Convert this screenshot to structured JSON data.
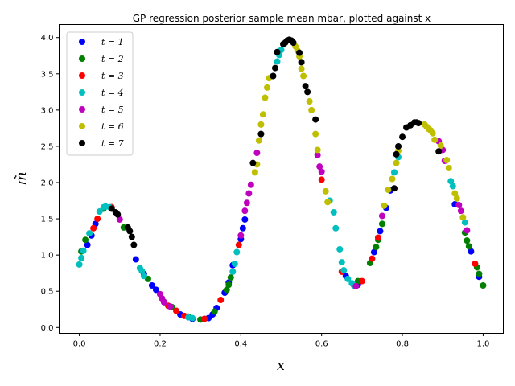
{
  "chart_data": {
    "type": "scatter",
    "title": "GP regression posterior sample mean mbar, plotted against x",
    "xlabel": "x",
    "ylabel": "m̃",
    "xlim": [
      -0.05,
      1.05
    ],
    "ylim": [
      -0.08,
      4.18
    ],
    "xticks": [
      0.0,
      0.2,
      0.4,
      0.6,
      0.8,
      1.0
    ],
    "xtick_labels": [
      "0.0",
      "0.2",
      "0.4",
      "0.6",
      "0.8",
      "1.0"
    ],
    "yticks": [
      0.0,
      0.5,
      1.0,
      1.5,
      2.0,
      2.5,
      3.0,
      3.5,
      4.0
    ],
    "ytick_labels": [
      "0.0",
      "0.5",
      "1.0",
      "1.5",
      "2.0",
      "2.5",
      "3.0",
      "3.5",
      "4.0"
    ],
    "grid": false,
    "legend_position": "top-left",
    "series": [
      {
        "name": "t = 1",
        "color": "#0000ff",
        "points": [
          [
            0.02,
            1.14
          ],
          [
            0.03,
            1.27
          ],
          [
            0.04,
            1.43
          ],
          [
            0.14,
            0.94
          ],
          [
            0.16,
            0.74
          ],
          [
            0.18,
            0.58
          ],
          [
            0.19,
            0.52
          ],
          [
            0.21,
            0.35
          ],
          [
            0.25,
            0.18
          ],
          [
            0.28,
            0.12
          ],
          [
            0.32,
            0.13
          ],
          [
            0.33,
            0.18
          ],
          [
            0.34,
            0.27
          ],
          [
            0.36,
            0.48
          ],
          [
            0.37,
            0.62
          ],
          [
            0.38,
            0.86
          ],
          [
            0.4,
            1.22
          ],
          [
            0.405,
            1.37
          ],
          [
            0.41,
            1.49
          ],
          [
            0.66,
            0.71
          ],
          [
            0.69,
            0.59
          ],
          [
            0.73,
            1.04
          ],
          [
            0.745,
            1.33
          ],
          [
            0.76,
            1.65
          ],
          [
            0.77,
            1.89
          ],
          [
            0.93,
            1.7
          ],
          [
            0.97,
            1.05
          ],
          [
            0.99,
            0.7
          ]
        ]
      },
      {
        "name": "t = 2",
        "color": "#008000",
        "points": [
          [
            0.005,
            1.05
          ],
          [
            0.015,
            1.21
          ],
          [
            0.06,
            1.64
          ],
          [
            0.11,
            1.38
          ],
          [
            0.17,
            0.67
          ],
          [
            0.23,
            0.28
          ],
          [
            0.27,
            0.15
          ],
          [
            0.3,
            0.11
          ],
          [
            0.335,
            0.22
          ],
          [
            0.365,
            0.52
          ],
          [
            0.37,
            0.59
          ],
          [
            0.375,
            0.69
          ],
          [
            0.69,
            0.64
          ],
          [
            0.72,
            0.89
          ],
          [
            0.735,
            1.11
          ],
          [
            0.74,
            1.21
          ],
          [
            0.75,
            1.43
          ],
          [
            0.955,
            1.31
          ],
          [
            0.96,
            1.2
          ],
          [
            0.965,
            1.12
          ],
          [
            0.985,
            0.83
          ],
          [
            0.99,
            0.74
          ],
          [
            1.0,
            0.58
          ]
        ]
      },
      {
        "name": "t = 3",
        "color": "#ff0000",
        "points": [
          [
            0.035,
            1.37
          ],
          [
            0.045,
            1.5
          ],
          [
            0.08,
            1.66
          ],
          [
            0.22,
            0.3
          ],
          [
            0.24,
            0.23
          ],
          [
            0.26,
            0.16
          ],
          [
            0.31,
            0.12
          ],
          [
            0.35,
            0.38
          ],
          [
            0.395,
            1.14
          ],
          [
            0.6,
            2.04
          ],
          [
            0.65,
            0.77
          ],
          [
            0.7,
            0.64
          ],
          [
            0.725,
            0.95
          ],
          [
            0.74,
            1.24
          ],
          [
            0.98,
            0.88
          ]
        ]
      },
      {
        "name": "t = 4",
        "color": "#00bfbf",
        "points": [
          [
            0.0,
            0.87
          ],
          [
            0.005,
            0.96
          ],
          [
            0.01,
            1.06
          ],
          [
            0.025,
            1.3
          ],
          [
            0.05,
            1.6
          ],
          [
            0.06,
            1.66
          ],
          [
            0.065,
            1.67
          ],
          [
            0.075,
            1.66
          ],
          [
            0.15,
            0.82
          ],
          [
            0.155,
            0.78
          ],
          [
            0.16,
            0.71
          ],
          [
            0.27,
            0.14
          ],
          [
            0.28,
            0.13
          ],
          [
            0.38,
            0.77
          ],
          [
            0.385,
            0.88
          ],
          [
            0.39,
            1.04
          ],
          [
            0.49,
            3.67
          ],
          [
            0.495,
            3.76
          ],
          [
            0.5,
            3.83
          ],
          [
            0.62,
            1.75
          ],
          [
            0.63,
            1.59
          ],
          [
            0.635,
            1.37
          ],
          [
            0.645,
            1.08
          ],
          [
            0.65,
            0.9
          ],
          [
            0.655,
            0.79
          ],
          [
            0.665,
            0.67
          ],
          [
            0.675,
            0.61
          ],
          [
            0.68,
            0.58
          ],
          [
            0.78,
            2.14
          ],
          [
            0.79,
            2.35
          ],
          [
            0.92,
            2.02
          ],
          [
            0.925,
            1.95
          ],
          [
            0.955,
            1.45
          ]
        ]
      },
      {
        "name": "t = 5",
        "color": "#bf00bf",
        "points": [
          [
            0.1,
            1.49
          ],
          [
            0.2,
            0.46
          ],
          [
            0.205,
            0.4
          ],
          [
            0.21,
            0.35
          ],
          [
            0.225,
            0.29
          ],
          [
            0.4,
            1.27
          ],
          [
            0.41,
            1.61
          ],
          [
            0.415,
            1.72
          ],
          [
            0.42,
            1.85
          ],
          [
            0.425,
            1.97
          ],
          [
            0.44,
            2.41
          ],
          [
            0.59,
            2.38
          ],
          [
            0.595,
            2.22
          ],
          [
            0.6,
            2.15
          ],
          [
            0.685,
            0.57
          ],
          [
            0.75,
            1.54
          ],
          [
            0.89,
            2.57
          ],
          [
            0.9,
            2.45
          ],
          [
            0.905,
            2.3
          ],
          [
            0.94,
            1.69
          ],
          [
            0.945,
            1.61
          ],
          [
            0.96,
            1.34
          ]
        ]
      },
      {
        "name": "t = 6",
        "color": "#bfbf00",
        "points": [
          [
            0.435,
            2.14
          ],
          [
            0.44,
            2.25
          ],
          [
            0.445,
            2.58
          ],
          [
            0.45,
            2.8
          ],
          [
            0.455,
            2.94
          ],
          [
            0.46,
            3.17
          ],
          [
            0.465,
            3.31
          ],
          [
            0.47,
            3.44
          ],
          [
            0.535,
            3.88
          ],
          [
            0.54,
            3.82
          ],
          [
            0.545,
            3.74
          ],
          [
            0.55,
            3.57
          ],
          [
            0.555,
            3.47
          ],
          [
            0.57,
            3.12
          ],
          [
            0.575,
            3.0
          ],
          [
            0.585,
            2.67
          ],
          [
            0.59,
            2.45
          ],
          [
            0.61,
            1.88
          ],
          [
            0.615,
            1.73
          ],
          [
            0.755,
            1.68
          ],
          [
            0.765,
            1.9
          ],
          [
            0.775,
            2.05
          ],
          [
            0.785,
            2.27
          ],
          [
            0.79,
            2.44
          ],
          [
            0.855,
            2.8
          ],
          [
            0.86,
            2.77
          ],
          [
            0.865,
            2.74
          ],
          [
            0.87,
            2.72
          ],
          [
            0.875,
            2.68
          ],
          [
            0.88,
            2.59
          ],
          [
            0.895,
            2.51
          ],
          [
            0.91,
            2.31
          ],
          [
            0.915,
            2.2
          ],
          [
            0.93,
            1.85
          ],
          [
            0.935,
            1.78
          ],
          [
            0.95,
            1.52
          ]
        ]
      },
      {
        "name": "t = 7",
        "color": "#000000",
        "points": [
          [
            0.08,
            1.64
          ],
          [
            0.09,
            1.59
          ],
          [
            0.095,
            1.56
          ],
          [
            0.12,
            1.38
          ],
          [
            0.125,
            1.33
          ],
          [
            0.13,
            1.25
          ],
          [
            0.135,
            1.14
          ],
          [
            0.43,
            2.27
          ],
          [
            0.45,
            2.67
          ],
          [
            0.48,
            3.47
          ],
          [
            0.485,
            3.58
          ],
          [
            0.49,
            3.8
          ],
          [
            0.505,
            3.91
          ],
          [
            0.51,
            3.93
          ],
          [
            0.515,
            3.96
          ],
          [
            0.52,
            3.97
          ],
          [
            0.525,
            3.96
          ],
          [
            0.53,
            3.93
          ],
          [
            0.545,
            3.79
          ],
          [
            0.55,
            3.66
          ],
          [
            0.56,
            3.33
          ],
          [
            0.565,
            3.25
          ],
          [
            0.585,
            2.87
          ],
          [
            0.78,
            1.92
          ],
          [
            0.785,
            2.39
          ],
          [
            0.79,
            2.5
          ],
          [
            0.8,
            2.63
          ],
          [
            0.81,
            2.76
          ],
          [
            0.82,
            2.79
          ],
          [
            0.83,
            2.83
          ],
          [
            0.835,
            2.83
          ],
          [
            0.84,
            2.82
          ],
          [
            0.89,
            2.43
          ]
        ]
      }
    ]
  }
}
